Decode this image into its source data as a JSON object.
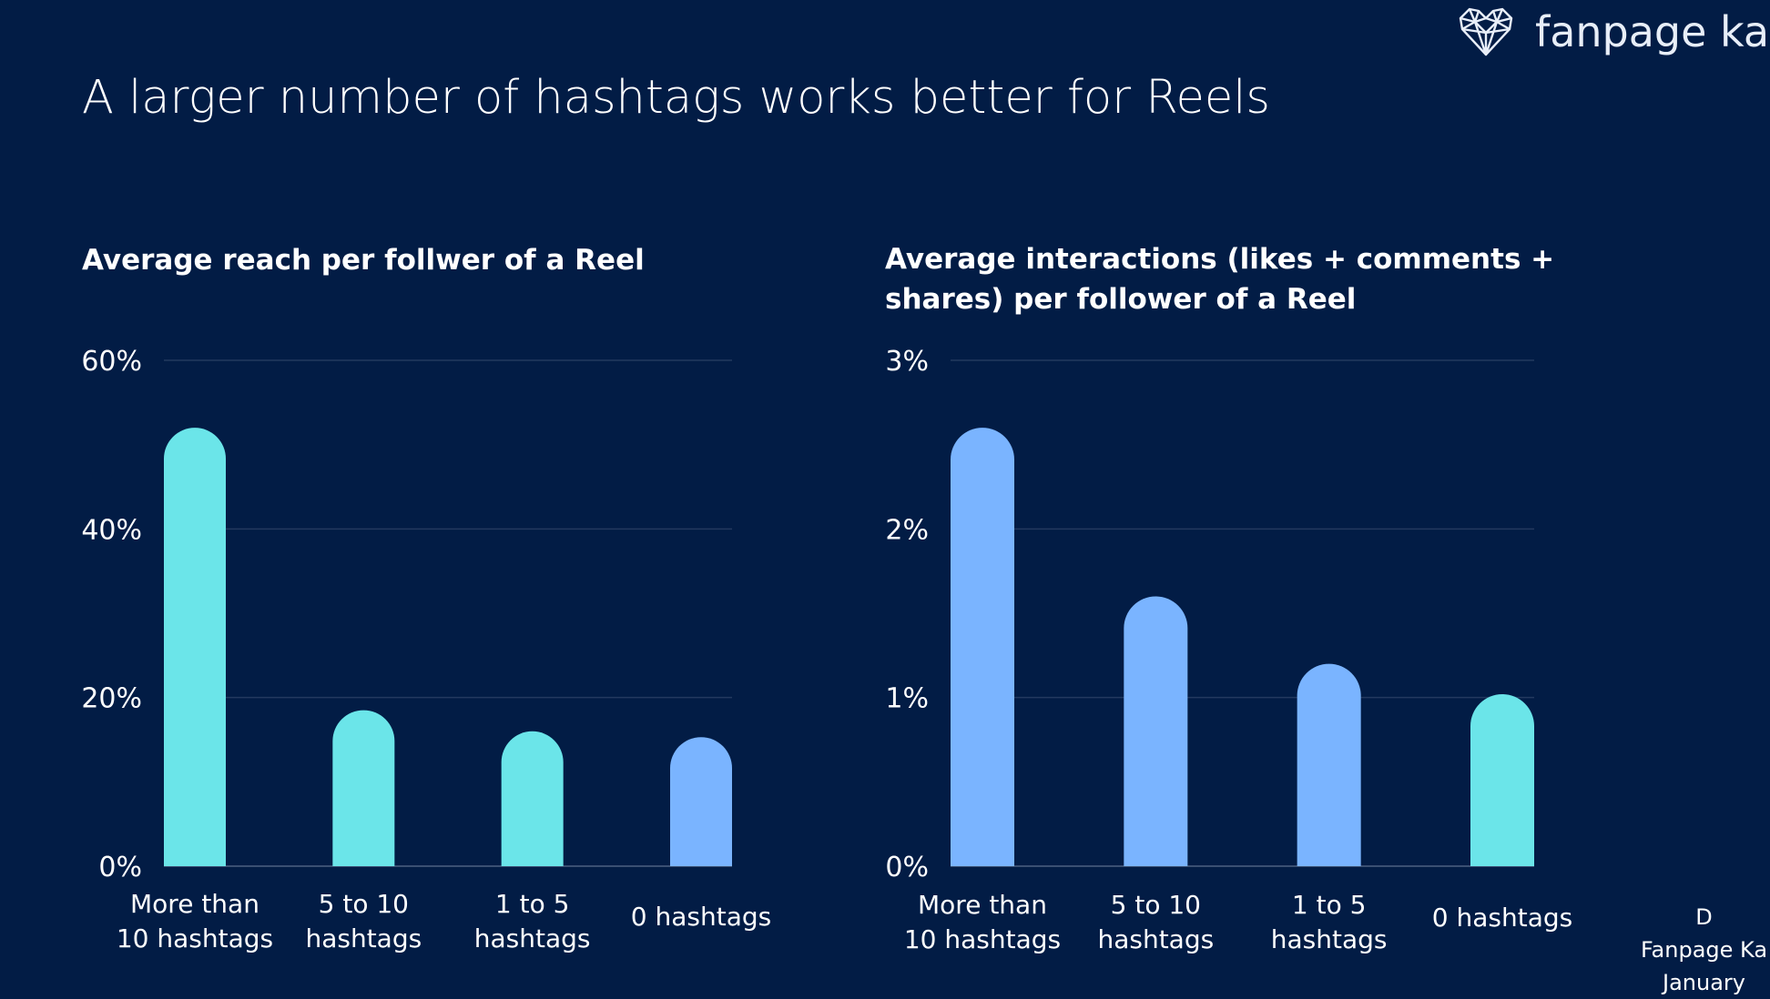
{
  "brand": {
    "name": "fanpage karm"
  },
  "page_title": "A larger number of hashtags works better for Reels",
  "source_lines": [
    "D",
    "Fanpage Ka",
    "January"
  ],
  "chart_data": [
    {
      "type": "bar",
      "title": "Average reach per follwer of a Reel",
      "categories": [
        [
          "More than",
          "10 hashtags"
        ],
        [
          "5 to 10",
          "hashtags"
        ],
        [
          "1 to 5",
          "hashtags"
        ],
        [
          "0 hashtags"
        ]
      ],
      "values": [
        52,
        18.5,
        16,
        15.3
      ],
      "yticks": [
        "0%",
        "20%",
        "40%",
        "60%"
      ],
      "ylim": [
        0,
        60
      ],
      "bar_colors": [
        "#6be5e9",
        "#6be5e9",
        "#6be5e9",
        "#7ab4ff"
      ],
      "grid": true
    },
    {
      "type": "bar",
      "title": "Average interactions (likes + comments + shares) per follower of a Reel",
      "categories": [
        [
          "More than",
          "10 hashtags"
        ],
        [
          "5 to 10",
          "hashtags"
        ],
        [
          "1 to 5",
          "hashtags"
        ],
        [
          "0 hashtags"
        ]
      ],
      "values": [
        2.6,
        1.6,
        1.2,
        1.02
      ],
      "yticks": [
        "0%",
        "1%",
        "2%",
        "3%"
      ],
      "ylim": [
        0,
        3
      ],
      "bar_colors": [
        "#7ab4ff",
        "#7ab4ff",
        "#7ab4ff",
        "#6be5e9"
      ],
      "grid": true
    }
  ]
}
